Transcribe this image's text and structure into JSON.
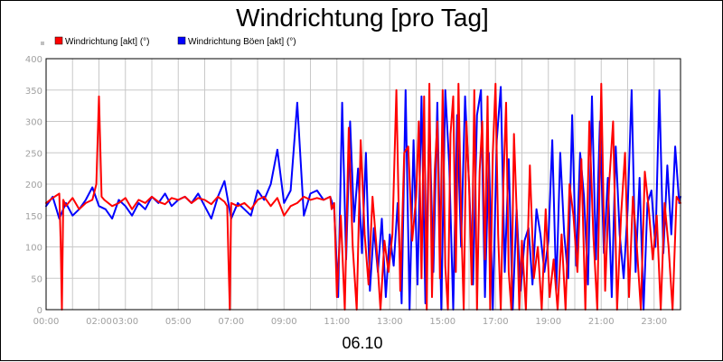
{
  "chart_data": {
    "type": "line",
    "title": "Windrichtung [pro Tag]",
    "xlabel": "06.10",
    "ylabel": "",
    "grid": true,
    "legend_position": "top-left",
    "xlim": [
      0,
      24
    ],
    "ylim": [
      0,
      400
    ],
    "y_ticks": [
      "0",
      "50",
      "100",
      "150",
      "200",
      "250",
      "300",
      "350",
      "400"
    ],
    "x_ticks": [
      "00:00",
      "02:00",
      "03:00",
      "05:00",
      "07:00",
      "09:00",
      "11:00",
      "13:00",
      "15:00",
      "17:00",
      "19:00",
      "21:00",
      "23:00"
    ],
    "x_tick_hours": [
      0,
      2,
      3,
      5,
      7,
      9,
      11,
      13,
      15,
      17,
      19,
      21,
      23
    ],
    "series": [
      {
        "name": "Windrichtung [akt] (°)",
        "color": "#ff0000",
        "x": [
          0,
          0.25,
          0.5,
          0.55,
          0.6,
          0.65,
          0.75,
          1.0,
          1.25,
          1.5,
          1.75,
          1.9,
          2.0,
          2.1,
          2.2,
          2.5,
          2.75,
          3.0,
          3.25,
          3.5,
          3.75,
          4.0,
          4.25,
          4.5,
          4.75,
          5.0,
          5.25,
          5.5,
          5.75,
          6.0,
          6.25,
          6.5,
          6.75,
          6.85,
          6.9,
          6.95,
          7.0,
          7.25,
          7.5,
          7.75,
          8.0,
          8.25,
          8.5,
          8.75,
          9.0,
          9.25,
          9.5,
          9.75,
          10.0,
          10.25,
          10.5,
          10.75,
          10.8,
          10.9,
          11.0,
          11.15,
          11.3,
          11.45,
          11.6,
          11.75,
          11.9,
          12.05,
          12.2,
          12.35,
          12.5,
          12.65,
          12.8,
          12.95,
          13.1,
          13.25,
          13.4,
          13.55,
          13.7,
          13.85,
          14.0,
          14.1,
          14.2,
          14.3,
          14.4,
          14.5,
          14.6,
          14.7,
          14.8,
          14.9,
          15.0,
          15.1,
          15.2,
          15.3,
          15.4,
          15.5,
          15.6,
          15.7,
          15.8,
          15.9,
          16.0,
          16.1,
          16.2,
          16.3,
          16.4,
          16.5,
          16.6,
          16.7,
          16.8,
          16.9,
          17.0,
          17.1,
          17.2,
          17.3,
          17.4,
          17.5,
          17.6,
          17.7,
          17.8,
          17.9,
          18.0,
          18.15,
          18.3,
          18.45,
          18.6,
          18.75,
          18.9,
          19.05,
          19.2,
          19.35,
          19.5,
          19.65,
          19.8,
          19.95,
          20.1,
          20.25,
          20.4,
          20.55,
          20.7,
          20.85,
          21.0,
          21.15,
          21.3,
          21.45,
          21.6,
          21.75,
          21.9,
          22.05,
          22.2,
          22.35,
          22.5,
          22.65,
          22.8,
          22.95,
          23.1,
          23.25,
          23.4,
          23.55,
          23.7,
          23.85,
          24.0
        ],
        "values": [
          170,
          178,
          185,
          110,
          0,
          175,
          165,
          178,
          160,
          170,
          175,
          200,
          340,
          180,
          175,
          165,
          170,
          178,
          160,
          175,
          170,
          180,
          172,
          168,
          178,
          175,
          180,
          170,
          178,
          175,
          168,
          180,
          172,
          165,
          80,
          0,
          170,
          165,
          170,
          160,
          175,
          180,
          165,
          178,
          150,
          165,
          170,
          180,
          175,
          178,
          175,
          180,
          160,
          170,
          20,
          150,
          0,
          290,
          100,
          0,
          270,
          120,
          40,
          180,
          100,
          0,
          110,
          60,
          120,
          350,
          30,
          250,
          260,
          110,
          180,
          300,
          50,
          340,
          0,
          360,
          20,
          220,
          300,
          50,
          350,
          70,
          0,
          280,
          340,
          60,
          360,
          150,
          0,
          300,
          200,
          40,
          350,
          0,
          220,
          300,
          80,
          340,
          0,
          250,
          360,
          120,
          0,
          200,
          330,
          60,
          0,
          280,
          160,
          0,
          110,
          0,
          230,
          50,
          100,
          0,
          160,
          20,
          80,
          0,
          120,
          0,
          200,
          150,
          60,
          240,
          0,
          300,
          120,
          0,
          360,
          30,
          200,
          300,
          0,
          150,
          250,
          20,
          180,
          100,
          0,
          220,
          160,
          80,
          150,
          0,
          170,
          100,
          0,
          180,
          170
        ]
      },
      {
        "name": "Windrichtung Böen [akt] (°)",
        "color": "#0000ff",
        "x": [
          0,
          0.25,
          0.5,
          0.75,
          1.0,
          1.25,
          1.5,
          1.75,
          2.0,
          2.25,
          2.5,
          2.75,
          3.0,
          3.25,
          3.5,
          3.75,
          4.0,
          4.25,
          4.5,
          4.75,
          5.0,
          5.25,
          5.5,
          5.75,
          6.0,
          6.25,
          6.5,
          6.75,
          7.0,
          7.25,
          7.5,
          7.75,
          8.0,
          8.25,
          8.5,
          8.75,
          9.0,
          9.25,
          9.5,
          9.75,
          10.0,
          10.25,
          10.5,
          10.75,
          10.9,
          11.05,
          11.2,
          11.35,
          11.5,
          11.65,
          11.8,
          11.95,
          12.1,
          12.25,
          12.4,
          12.55,
          12.7,
          12.85,
          13.0,
          13.15,
          13.3,
          13.45,
          13.6,
          13.75,
          13.9,
          14.05,
          14.2,
          14.35,
          14.5,
          14.65,
          14.8,
          14.95,
          15.1,
          15.25,
          15.4,
          15.55,
          15.7,
          15.85,
          16.0,
          16.15,
          16.3,
          16.45,
          16.6,
          16.75,
          16.9,
          17.05,
          17.2,
          17.35,
          17.5,
          17.65,
          17.8,
          17.95,
          18.1,
          18.25,
          18.4,
          18.55,
          18.7,
          18.85,
          19.0,
          19.15,
          19.3,
          19.45,
          19.6,
          19.75,
          19.9,
          20.05,
          20.2,
          20.35,
          20.5,
          20.65,
          20.8,
          20.95,
          21.1,
          21.25,
          21.4,
          21.55,
          21.7,
          21.85,
          22.0,
          22.15,
          22.3,
          22.45,
          22.6,
          22.75,
          22.9,
          23.05,
          23.2,
          23.35,
          23.5,
          23.65,
          23.8,
          23.95,
          24.0
        ],
        "values": [
          165,
          180,
          145,
          170,
          150,
          160,
          175,
          195,
          165,
          160,
          145,
          175,
          165,
          150,
          170,
          160,
          180,
          170,
          185,
          165,
          175,
          180,
          170,
          185,
          165,
          145,
          180,
          205,
          145,
          170,
          160,
          150,
          190,
          175,
          200,
          255,
          170,
          190,
          330,
          150,
          185,
          190,
          175,
          180,
          160,
          20,
          330,
          80,
          300,
          140,
          225,
          90,
          250,
          30,
          130,
          60,
          145,
          20,
          120,
          70,
          170,
          10,
          350,
          0,
          270,
          40,
          340,
          10,
          305,
          60,
          330,
          0,
          350,
          230,
          0,
          310,
          100,
          340,
          200,
          40,
          310,
          350,
          20,
          250,
          0,
          270,
          355,
          60,
          240,
          0,
          160,
          30,
          110,
          130,
          40,
          160,
          120,
          60,
          110,
          270,
          30,
          250,
          120,
          50,
          310,
          70,
          250,
          180,
          40,
          340,
          80,
          300,
          90,
          210,
          20,
          260,
          120,
          50,
          160,
          350,
          60,
          210,
          0,
          170,
          190,
          100,
          350,
          90,
          230,
          120,
          260,
          170,
          180
        ]
      }
    ]
  }
}
